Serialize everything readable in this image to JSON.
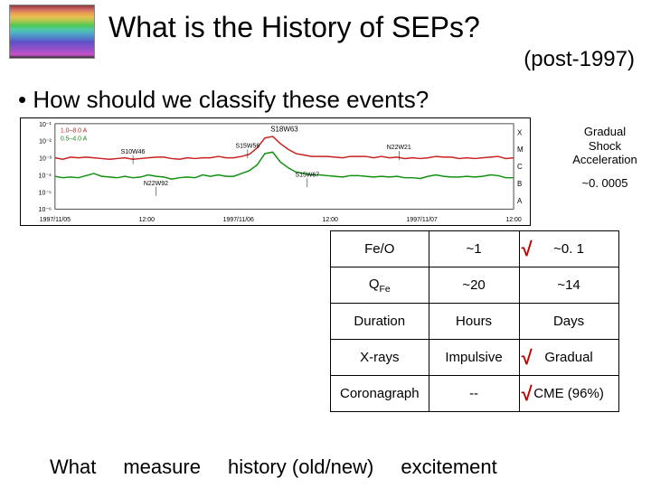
{
  "title": "What is the History of SEPs?",
  "subtitle": "(post-1997)",
  "bullet": "• How should we classify these events?",
  "thumbnail": {
    "colors": [
      "#8b3a3a",
      "#d46a6a",
      "#e8a050",
      "#e8c050",
      "#a8c850",
      "#50c850",
      "#50c8a8",
      "#50a8c8",
      "#5080c8",
      "#6050c8",
      "#8050c8",
      "#a050c8",
      "#c850c8"
    ]
  },
  "chart": {
    "type": "line",
    "title": "S18W63",
    "line_colors": [
      "#c92020",
      "#109010"
    ],
    "legend": [
      "1.0–8.0 A",
      "0.5–4.0 A"
    ],
    "legend_colors": [
      "#c92020",
      "#109010"
    ],
    "y_ticks": [
      "10⁻¹",
      "10⁻²",
      "10⁻³",
      "10⁻⁴",
      "10⁻⁵",
      "10⁻⁶"
    ],
    "y_letters": [
      "X",
      "M",
      "C",
      "B",
      "A"
    ],
    "x_labels": [
      "1997/11/05",
      "12:00",
      "1997/11/06",
      "12:00",
      "1997/11/07",
      "12:00"
    ],
    "annotations": [
      "S10W46",
      "N22W92",
      "S15W56",
      "S15W67",
      "N22W21"
    ],
    "red_series": [
      3.6,
      3.5,
      3.65,
      3.6,
      3.65,
      3.6,
      3.55,
      3.5,
      3.55,
      3.6,
      3.5,
      3.55,
      3.6,
      3.65,
      3.65,
      3.55,
      3.5,
      3.6,
      3.55,
      3.6,
      3.6,
      3.7,
      3.6,
      3.6,
      3.7,
      3.85,
      4.3,
      5.0,
      5.1,
      4.6,
      4.2,
      3.9,
      3.8,
      3.7,
      3.7,
      3.7,
      3.65,
      3.6,
      3.7,
      3.7,
      3.7,
      3.6,
      3.7,
      3.6,
      3.65,
      3.55,
      3.6,
      3.55,
      3.6,
      3.7,
      3.65,
      3.65,
      3.55,
      3.6,
      3.55,
      3.6,
      3.65,
      3.7,
      3.55,
      3.6
    ],
    "green_series": [
      2.3,
      2.2,
      2.25,
      2.2,
      2.35,
      2.5,
      2.3,
      2.25,
      2.2,
      2.3,
      2.2,
      2.25,
      2.4,
      2.3,
      2.25,
      2.1,
      2.2,
      2.25,
      2.2,
      2.4,
      2.3,
      2.4,
      2.3,
      2.3,
      2.5,
      2.7,
      3.1,
      3.9,
      4.0,
      3.3,
      2.9,
      2.6,
      2.5,
      2.4,
      2.4,
      2.35,
      2.3,
      2.25,
      2.35,
      2.35,
      2.3,
      2.25,
      2.3,
      2.25,
      2.3,
      2.2,
      2.2,
      2.15,
      2.3,
      2.4,
      2.3,
      2.25,
      2.25,
      2.3,
      2.25,
      2.3,
      2.4,
      2.35,
      2.2,
      2.2
    ],
    "ylim": [
      0,
      6
    ],
    "background": "#ffffff",
    "line_width": 1.5
  },
  "right_panel": {
    "heading_lines": [
      "Gradual",
      "Shock",
      "Acceleration"
    ],
    "value": "~0. 0005"
  },
  "table": {
    "rows": [
      {
        "param": "Fe/O",
        "impulsive": "~1",
        "gradual": "~0. 1",
        "check": true
      },
      {
        "param": "Q_Fe",
        "impulsive": "~20",
        "gradual": "~14",
        "check": false
      },
      {
        "param": "Duration",
        "impulsive": "Hours",
        "gradual": "Days",
        "check": false
      },
      {
        "param": "X-rays",
        "impulsive": "Impulsive",
        "gradual": "Gradual",
        "check": true
      },
      {
        "param": "Coronagraph",
        "impulsive": "--",
        "gradual": "CME (96%)",
        "check": true
      }
    ],
    "checkmark_color": "#c00000"
  },
  "footer": [
    "What",
    "measure",
    "history (old/new)",
    "excitement"
  ]
}
